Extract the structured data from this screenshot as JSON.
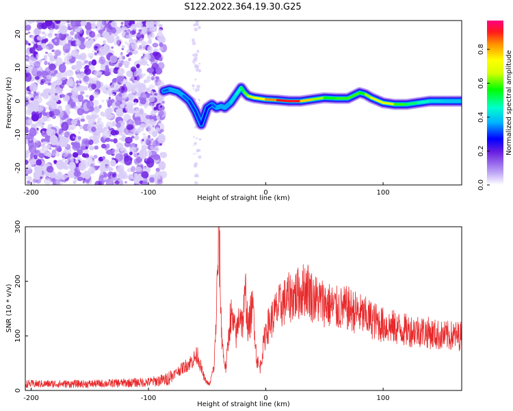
{
  "title": "S122.2022.364.19.30.G25",
  "colors": {
    "spectrogram_low": "#7b2cf0",
    "snr_line": "#e8282a",
    "frame": "#000000"
  },
  "chart_data": [
    {
      "type": "heatmap",
      "xlabel": "Height of straight line (km)",
      "ylabel": "Frequency (Hz)",
      "xlim": [
        -205,
        167
      ],
      "ylim": [
        -25,
        24
      ],
      "xticks": [
        -200,
        -100,
        0,
        100
      ],
      "yticks": [
        -20,
        -10,
        0,
        10,
        20
      ],
      "colorbar": {
        "label": "Normalized spectral amplitude",
        "range": [
          0,
          0.97
        ],
        "ticks": [
          0.0,
          0.2,
          0.4,
          0.6,
          0.8
        ]
      },
      "noise_region": {
        "x_start": -205,
        "x_end": -87,
        "level": 0.2
      },
      "track_frequency": {
        "x": [
          -87,
          -82,
          -75,
          -70,
          -65,
          -60,
          -55,
          -50,
          -46,
          -42,
          -38,
          -35,
          -30,
          -25,
          -21,
          -18,
          -15,
          -10,
          0,
          10,
          20,
          30,
          40,
          50,
          60,
          70,
          80,
          85,
          90,
          100,
          110,
          120,
          130,
          140,
          150,
          160,
          167
        ],
        "y": [
          3,
          3.5,
          2.8,
          1.5,
          0,
          -3,
          -7,
          -2,
          -1,
          -2,
          -1.5,
          -2,
          -0.5,
          2,
          4,
          2.5,
          1.5,
          1,
          0.5,
          0.3,
          0,
          0,
          0.5,
          1,
          0.8,
          0.8,
          2.5,
          2,
          1,
          -0.5,
          -1,
          -1,
          -0.5,
          0,
          0,
          0,
          0
        ],
        "amplitude": [
          0.3,
          0.35,
          0.4,
          0.35,
          0.3,
          0.3,
          0.3,
          0.25,
          0.3,
          0.35,
          0.4,
          0.35,
          0.4,
          0.45,
          0.5,
          0.6,
          0.65,
          0.7,
          0.8,
          0.9,
          0.97,
          0.9,
          0.7,
          0.6,
          0.55,
          0.65,
          0.55,
          0.6,
          0.7,
          0.75,
          0.65,
          0.55,
          0.5,
          0.45,
          0.4,
          0.4,
          0.4
        ]
      }
    },
    {
      "type": "line",
      "xlabel": "Height of straight line (km)",
      "ylabel": "SNR (10 * v/v)",
      "xlim": [
        -205,
        167
      ],
      "ylim": [
        0,
        300
      ],
      "xticks": [
        -200,
        -100,
        0,
        100
      ],
      "yticks": [
        0,
        100,
        200,
        300
      ],
      "envelope": {
        "x": [
          -205,
          -150,
          -100,
          -85,
          -75,
          -65,
          -58,
          -55,
          -52,
          -48,
          -44,
          -42,
          -40,
          -38,
          -36,
          -34,
          -32,
          -30,
          -28,
          -25,
          -22,
          -20,
          -17,
          -15,
          -12,
          -10,
          -8,
          -5,
          0,
          5,
          10,
          20,
          30,
          35,
          40,
          50,
          60,
          70,
          80,
          90,
          100,
          110,
          120,
          130,
          140,
          150,
          160,
          167
        ],
        "y": [
          12,
          12,
          15,
          20,
          35,
          50,
          65,
          40,
          20,
          10,
          45,
          150,
          300,
          120,
          60,
          40,
          90,
          140,
          120,
          100,
          150,
          120,
          180,
          110,
          150,
          140,
          60,
          40,
          110,
          130,
          150,
          170,
          180,
          190,
          170,
          160,
          150,
          150,
          140,
          130,
          120,
          115,
          110,
          110,
          105,
          100,
          100,
          100
        ]
      }
    }
  ]
}
